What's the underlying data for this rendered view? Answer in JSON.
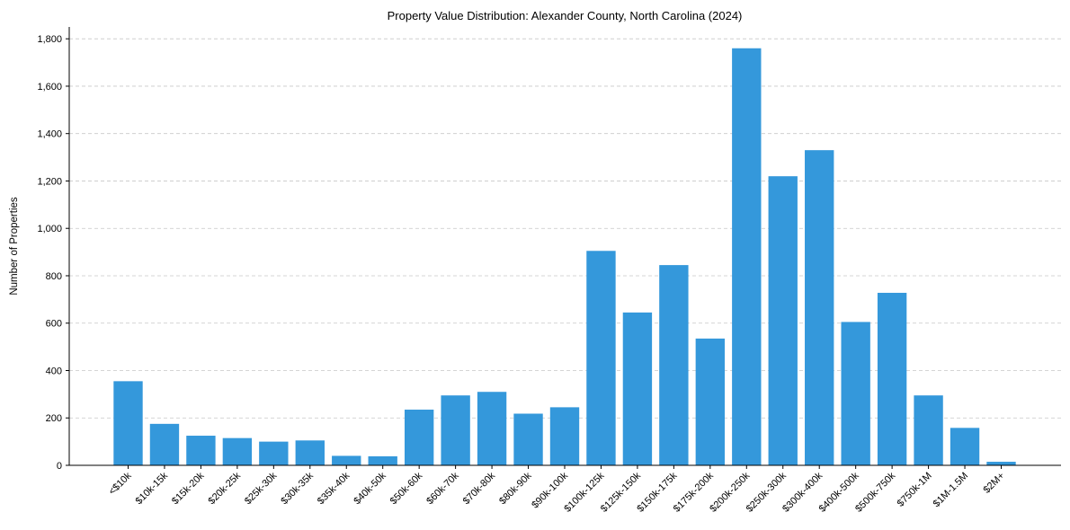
{
  "chart_data": {
    "type": "bar",
    "title": "Property Value Distribution: Alexander County, North Carolina (2024)",
    "xlabel": "",
    "ylabel": "Number of Properties",
    "ylim": [
      0,
      1850
    ],
    "yticks": [
      0,
      200,
      400,
      600,
      800,
      1000,
      1200,
      1400,
      1600,
      1800
    ],
    "ytick_labels": [
      "0",
      "200",
      "400",
      "600",
      "800",
      "1,000",
      "1,200",
      "1,400",
      "1,600",
      "1,800"
    ],
    "grid": "y-dashed",
    "bar_color": "#3498db",
    "categories": [
      "<$10k",
      "$10k-15k",
      "$15k-20k",
      "$20k-25k",
      "$25k-30k",
      "$30k-35k",
      "$35k-40k",
      "$40k-50k",
      "$50k-60k",
      "$60k-70k",
      "$70k-80k",
      "$80k-90k",
      "$90k-100k",
      "$100k-125k",
      "$125k-150k",
      "$150k-175k",
      "$175k-200k",
      "$200k-250k",
      "$250k-300k",
      "$300k-400k",
      "$400k-500k",
      "$500k-750k",
      "$750k-1M",
      "$1M-1.5M",
      "$2M+"
    ],
    "values": [
      355,
      175,
      125,
      115,
      100,
      105,
      40,
      38,
      235,
      295,
      310,
      218,
      245,
      905,
      645,
      845,
      535,
      1760,
      1220,
      1330,
      605,
      728,
      295,
      158,
      15
    ]
  }
}
